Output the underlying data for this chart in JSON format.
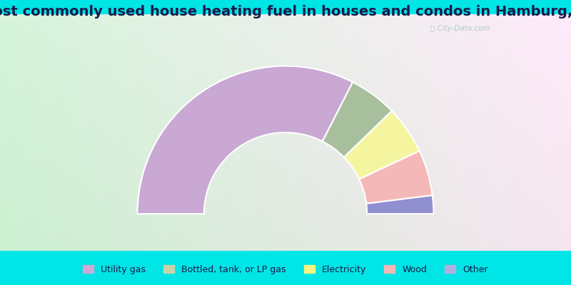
{
  "title": "Most commonly used house heating fuel in houses and condos in Hamburg, IL",
  "categories": [
    "Utility gas",
    "Bottled, tank, or LP gas",
    "Electricity",
    "Wood",
    "Other"
  ],
  "values": [
    65.0,
    10.5,
    10.5,
    10.0,
    4.0
  ],
  "colors": [
    "#c9a8d4",
    "#a8bf9e",
    "#f5f5a0",
    "#f5b8b8",
    "#9090d0"
  ],
  "legend_colors": [
    "#d4a8d4",
    "#c8d4a8",
    "#f5f580",
    "#f5b8b8",
    "#b0b0e0"
  ],
  "bg_cyan": "#00e5e5",
  "title_fontsize": 14,
  "legend_fontsize": 9
}
